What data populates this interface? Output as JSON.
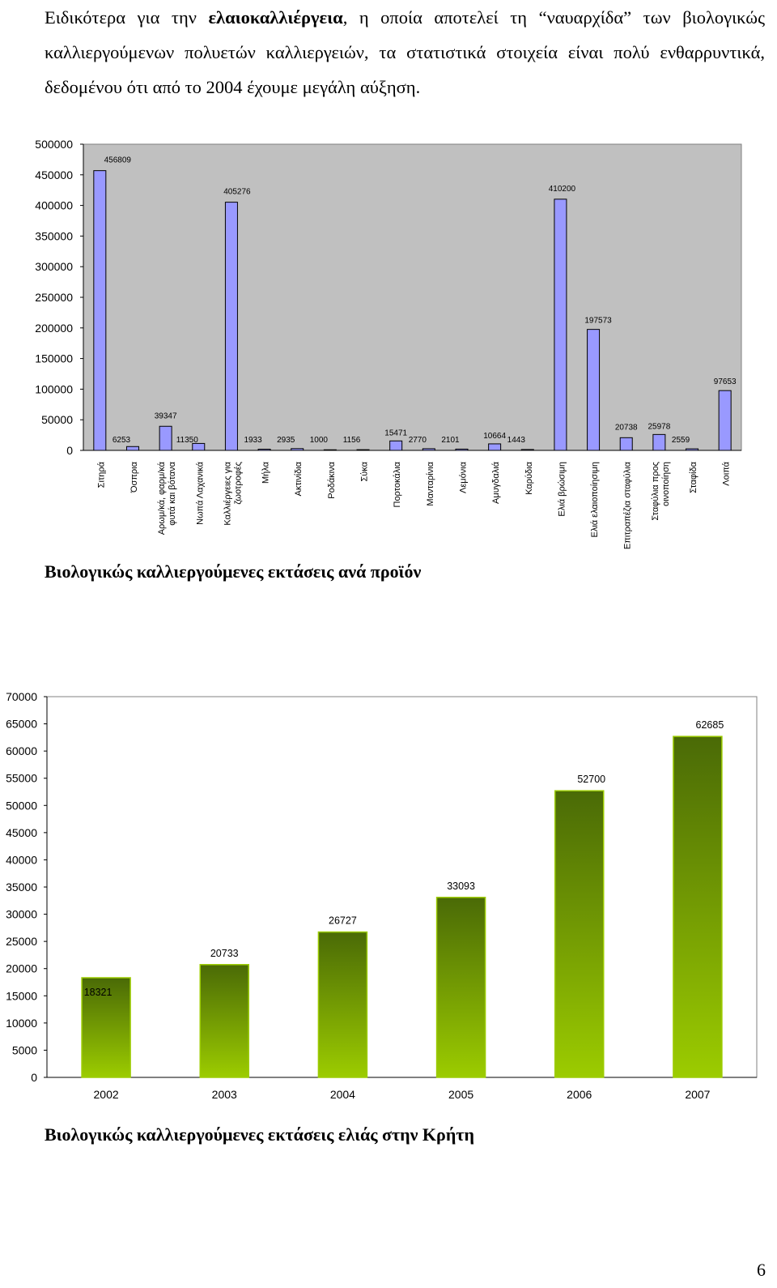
{
  "intro": {
    "part1": "Ειδικότερα για την ",
    "bold": "ελαιοκαλλιέργεια",
    "part2": ", η οποία αποτελεί τη “ναυαρχίδα” των βιολογικώς καλλιεργούμενων πολυετών καλλιεργειών, τα στατιστικά στοιχεία είναι πολύ ενθαρρυντικά, δεδομένου ότι από το 2004 έχουμε μεγάλη αύξηση."
  },
  "captions": {
    "chart1": "Βιολογικώς καλλιεργούμενες εκτάσεις ανά προϊόν",
    "chart2": "Βιολογικώς καλλιεργούμενες εκτάσεις ελιάς στην Κρήτη"
  },
  "page_number": "6",
  "chart_data": [
    {
      "type": "bar",
      "title": "",
      "xlabel": "",
      "ylabel": "",
      "ylim": [
        0,
        500000
      ],
      "yticks": [
        "0",
        "50000",
        "100000",
        "150000",
        "200000",
        "250000",
        "300000",
        "350000",
        "400000",
        "450000",
        "500000"
      ],
      "grid": false,
      "plot_background": "#c0c0c0",
      "bar_color": "#9999ff",
      "categories": [
        "Σιτηρά",
        "Όσπρια",
        "Αρωματικά, φαρμακευτικά φυτά και βότανα",
        "Νωπά Λαχανικά",
        "Καλλιέργειες για ζωοτροφές",
        "Μήλα",
        "Ακτινίδια",
        "Ροδάκινα",
        "Σύκα",
        "Πορτοκάλια",
        "Μανταρίνια",
        "Λεμόνια",
        "Αμυγδαλιά",
        "Καρύδια",
        "Ελιά βρώσιμη",
        "Ελιά ελαιοποιήσιμη",
        "Επιτραπέζια σταφύλια",
        "Σταφύλια προς οινοποίηση",
        "Σταφίδα",
        "Λοιπά"
      ],
      "category_lines": [
        [
          "Σιτηρά"
        ],
        [
          "Όσπρια"
        ],
        [
          "Αρωμ/κά, φαρμ/κά",
          "φυτά και βότανα"
        ],
        [
          "Νωπά Λαχανικά"
        ],
        [
          "Καλλιέργειες για",
          "ζωοτροφές"
        ],
        [
          "Μήλα"
        ],
        [
          "Ακτινίδια"
        ],
        [
          "Ροδάκινα"
        ],
        [
          "Σύκα"
        ],
        [
          "Πορτοκάλια"
        ],
        [
          "Μανταρίνια"
        ],
        [
          "Λεμόνια"
        ],
        [
          "Αμυγδαλιά"
        ],
        [
          "Καρύδια"
        ],
        [
          "Ελιά βρώσιμη"
        ],
        [
          "Ελιά ελαιοποίησιμη"
        ],
        [
          "Επιτραπέζια σταφύλια"
        ],
        [
          "Σταφύλια προς",
          "οινοποίηση"
        ],
        [
          "Σταφίδα"
        ],
        [
          "Λοιπά"
        ]
      ],
      "values": [
        456809,
        6253,
        39347,
        11350,
        405276,
        1933,
        2935,
        1000,
        1156,
        15471,
        2770,
        2101,
        10664,
        1443,
        410200,
        197573,
        20738,
        25978,
        2559,
        97653
      ],
      "value_labels": [
        "456809",
        "6253",
        "39347",
        "11350",
        "405276",
        "1933",
        "2935",
        "1000",
        "1156",
        "15471",
        "2770",
        "2101",
        "10664",
        "1443",
        "410200",
        "197573",
        "20738",
        "25978",
        "2559",
        "97653"
      ]
    },
    {
      "type": "bar",
      "title": "",
      "xlabel": "",
      "ylabel": "",
      "ylim": [
        0,
        70000
      ],
      "yticks": [
        "0",
        "5000",
        "10000",
        "15000",
        "20000",
        "25000",
        "30000",
        "35000",
        "40000",
        "45000",
        "50000",
        "55000",
        "60000",
        "65000",
        "70000"
      ],
      "grid": false,
      "plot_background": "#ffffff",
      "bar_gradient": [
        "#4a6a06",
        "#9ccc00"
      ],
      "categories": [
        "2002",
        "2003",
        "2004",
        "2005",
        "2006",
        "2007"
      ],
      "values": [
        18321,
        20733,
        26727,
        33093,
        52700,
        62685
      ],
      "value_labels": [
        "18321",
        "20733",
        "26727",
        "33093",
        "52700",
        "62685"
      ]
    }
  ]
}
